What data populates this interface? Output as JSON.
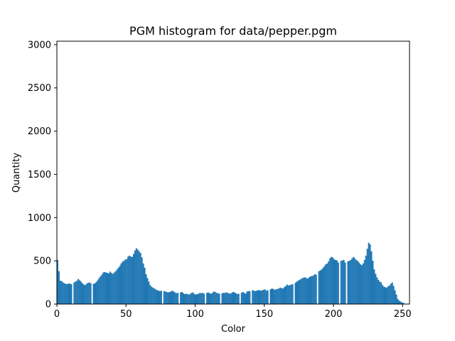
{
  "chart_data": {
    "type": "bar",
    "title": "PGM histogram for data/pepper.pgm",
    "xlabel": "Color",
    "ylabel": "Quantity",
    "xlim": [
      0,
      255
    ],
    "ylim": [
      0,
      3040
    ],
    "xticks": [
      0,
      50,
      100,
      150,
      200,
      250
    ],
    "yticks": [
      0,
      500,
      1000,
      1500,
      2000,
      2500,
      3000
    ],
    "bar_color": "#1f77b4",
    "note": "values are per-color pixel counts for colors 0..255, read approximately from the plot",
    "values": [
      510,
      380,
      270,
      265,
      250,
      240,
      235,
      230,
      240,
      235,
      230,
      0,
      250,
      260,
      270,
      290,
      275,
      260,
      240,
      225,
      220,
      235,
      245,
      250,
      240,
      0,
      235,
      240,
      255,
      275,
      300,
      320,
      340,
      365,
      370,
      365,
      360,
      355,
      375,
      360,
      350,
      365,
      380,
      400,
      420,
      440,
      470,
      490,
      500,
      515,
      520,
      550,
      560,
      550,
      545,
      580,
      620,
      645,
      630,
      610,
      590,
      540,
      470,
      420,
      345,
      300,
      260,
      220,
      200,
      190,
      180,
      170,
      160,
      155,
      150,
      155,
      0,
      150,
      145,
      140,
      135,
      140,
      145,
      155,
      145,
      135,
      125,
      130,
      0,
      135,
      140,
      125,
      115,
      120,
      115,
      110,
      120,
      130,
      135,
      115,
      110,
      115,
      120,
      130,
      125,
      130,
      120,
      0,
      130,
      135,
      125,
      120,
      130,
      145,
      140,
      130,
      125,
      120,
      0,
      125,
      130,
      130,
      135,
      130,
      125,
      120,
      130,
      140,
      135,
      125,
      115,
      120,
      0,
      130,
      140,
      130,
      120,
      145,
      150,
      150,
      0,
      160,
      155,
      150,
      155,
      160,
      160,
      155,
      160,
      165,
      170,
      155,
      160,
      0,
      170,
      180,
      175,
      165,
      170,
      175,
      180,
      190,
      185,
      180,
      195,
      210,
      225,
      215,
      220,
      225,
      230,
      0,
      245,
      260,
      270,
      280,
      290,
      300,
      305,
      310,
      300,
      295,
      310,
      320,
      325,
      330,
      345,
      340,
      0,
      380,
      390,
      400,
      420,
      440,
      460,
      470,
      495,
      530,
      545,
      540,
      520,
      510,
      505,
      480,
      0,
      500,
      505,
      510,
      480,
      0,
      495,
      500,
      510,
      530,
      545,
      530,
      510,
      500,
      480,
      460,
      450,
      470,
      510,
      560,
      640,
      710,
      690,
      610,
      500,
      400,
      350,
      310,
      280,
      260,
      250,
      220,
      200,
      195,
      190,
      205,
      215,
      235,
      250,
      210,
      160,
      110,
      60,
      40,
      30,
      20,
      15,
      5,
      0,
      0,
      0,
      0
    ]
  }
}
